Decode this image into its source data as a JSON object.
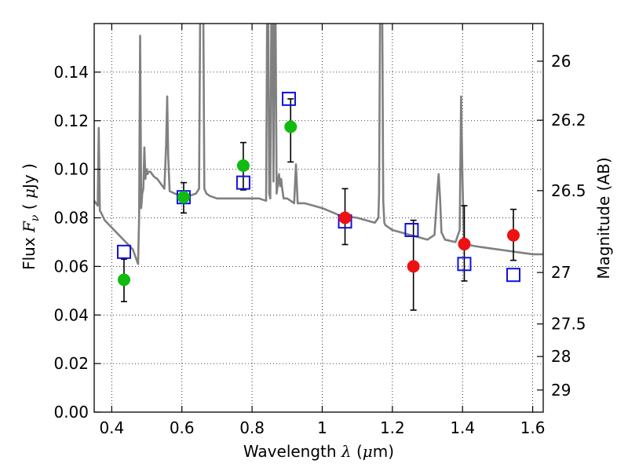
{
  "chart_data": {
    "type": "scatter",
    "title": "",
    "xlabel": {
      "prefix": "Wavelength ",
      "symbol": "λ",
      "unit_open": " (",
      "unit_mu": "μ",
      "unit_rest": "m)"
    },
    "ylabel": {
      "prefix": "Flux ",
      "symbol": "F",
      "sub": "ν",
      "unit_open": "  ( ",
      "unit_mu": "μ",
      "unit_rest": "Jy )"
    },
    "y2label": "Magnitude (AB)",
    "xlim": [
      0.35,
      1.63
    ],
    "ylim": [
      0.0,
      0.16
    ],
    "x_ticks": [
      0.4,
      0.6,
      0.8,
      1.0,
      1.2,
      1.4,
      1.6
    ],
    "x_tick_labels": [
      "0.4",
      "0.6",
      "0.8",
      "1",
      "1.2",
      "1.4",
      "1.6"
    ],
    "y_ticks": [
      0.0,
      0.02,
      0.04,
      0.06,
      0.08,
      0.1,
      0.12,
      0.14
    ],
    "y_tick_labels": [
      "0.00",
      "0.02",
      "0.04",
      "0.06",
      "0.08",
      "0.10",
      "0.12",
      "0.14"
    ],
    "y2_ticks": [
      {
        "label": "26",
        "flux": 0.1445
      },
      {
        "label": "26.2",
        "flux": 0.1202
      },
      {
        "label": "26.5",
        "flux": 0.0912
      },
      {
        "label": "27",
        "flux": 0.0575
      },
      {
        "label": "27.5",
        "flux": 0.0363
      },
      {
        "label": "28",
        "flux": 0.0229
      },
      {
        "label": "29",
        "flux": 0.0091
      }
    ],
    "grid": true,
    "colors": {
      "model": "#808080",
      "optical": "#11bb11",
      "nir": "#ee1111",
      "model_points": "#1111dd",
      "errorbar": "#000000"
    },
    "series": [
      {
        "kind": "model_spectrum",
        "x": [
          0.35,
          0.36,
          0.363,
          0.366,
          0.37,
          0.38,
          0.4,
          0.42,
          0.44,
          0.46,
          0.475,
          0.478,
          0.481,
          0.484,
          0.487,
          0.49,
          0.493,
          0.496,
          0.499,
          0.502,
          0.505,
          0.51,
          0.52,
          0.53,
          0.54,
          0.55,
          0.555,
          0.558,
          0.561,
          0.565,
          0.58,
          0.6,
          0.62,
          0.64,
          0.649,
          0.652,
          0.655,
          0.658,
          0.661,
          0.664,
          0.67,
          0.68,
          0.7,
          0.72,
          0.74,
          0.76,
          0.78,
          0.8,
          0.82,
          0.84,
          0.843,
          0.846,
          0.849,
          0.852,
          0.855,
          0.858,
          0.861,
          0.864,
          0.867,
          0.87,
          0.874,
          0.877,
          0.88,
          0.883,
          0.886,
          0.89,
          0.9,
          0.91,
          0.92,
          0.925,
          0.93,
          0.95,
          1.0,
          1.05,
          1.1,
          1.15,
          1.16,
          1.162,
          1.165,
          1.168,
          1.171,
          1.174,
          1.177,
          1.18,
          1.2,
          1.25,
          1.3,
          1.32,
          1.328,
          1.332,
          1.336,
          1.34,
          1.35,
          1.38,
          1.392,
          1.396,
          1.4,
          1.404,
          1.41,
          1.45,
          1.5,
          1.55,
          1.6,
          1.63
        ],
        "y": [
          0.087,
          0.085,
          0.117,
          0.083,
          0.082,
          0.079,
          0.076,
          0.073,
          0.07,
          0.067,
          0.061,
          0.08,
          0.155,
          0.084,
          0.09,
          0.092,
          0.109,
          0.096,
          0.1,
          0.098,
          0.099,
          0.099,
          0.097,
          0.096,
          0.094,
          0.092,
          0.11,
          0.13,
          0.105,
          0.091,
          0.09,
          0.089,
          0.089,
          0.09,
          0.092,
          0.165,
          0.165,
          0.165,
          0.165,
          0.092,
          0.09,
          0.089,
          0.088,
          0.088,
          0.088,
          0.088,
          0.088,
          0.088,
          0.088,
          0.087,
          0.165,
          0.165,
          0.09,
          0.088,
          0.165,
          0.165,
          0.095,
          0.165,
          0.165,
          0.09,
          0.095,
          0.098,
          0.093,
          0.096,
          0.092,
          0.088,
          0.088,
          0.087,
          0.086,
          0.102,
          0.086,
          0.086,
          0.084,
          0.081,
          0.08,
          0.078,
          0.08,
          0.09,
          0.165,
          0.165,
          0.165,
          0.087,
          0.078,
          0.077,
          0.075,
          0.073,
          0.071,
          0.073,
          0.09,
          0.098,
          0.088,
          0.074,
          0.071,
          0.07,
          0.075,
          0.13,
          0.095,
          0.072,
          0.069,
          0.068,
          0.067,
          0.066,
          0.065,
          0.065
        ]
      },
      {
        "kind": "model_photometry",
        "x": [
          0.435,
          0.605,
          0.775,
          0.905,
          1.065,
          1.255,
          1.405,
          1.545
        ],
        "y": [
          0.066,
          0.0885,
          0.0945,
          0.129,
          0.0785,
          0.075,
          0.061,
          0.0565
        ]
      },
      {
        "kind": "observed_optical",
        "x": [
          0.435,
          0.605,
          0.775,
          0.91
        ],
        "y": [
          0.0545,
          0.0885,
          0.1015,
          0.1175
        ],
        "yerr_low": [
          0.0455,
          0.082,
          0.0915,
          0.103
        ],
        "yerr_high": [
          0.063,
          0.0945,
          0.111,
          0.129
        ]
      },
      {
        "kind": "observed_nir",
        "x": [
          1.065,
          1.26,
          1.405,
          1.545
        ],
        "y": [
          0.08,
          0.06,
          0.0692,
          0.0728
        ],
        "yerr_low": [
          0.069,
          0.042,
          0.054,
          0.0625
        ],
        "yerr_high": [
          0.092,
          0.079,
          0.085,
          0.0835
        ]
      }
    ]
  }
}
